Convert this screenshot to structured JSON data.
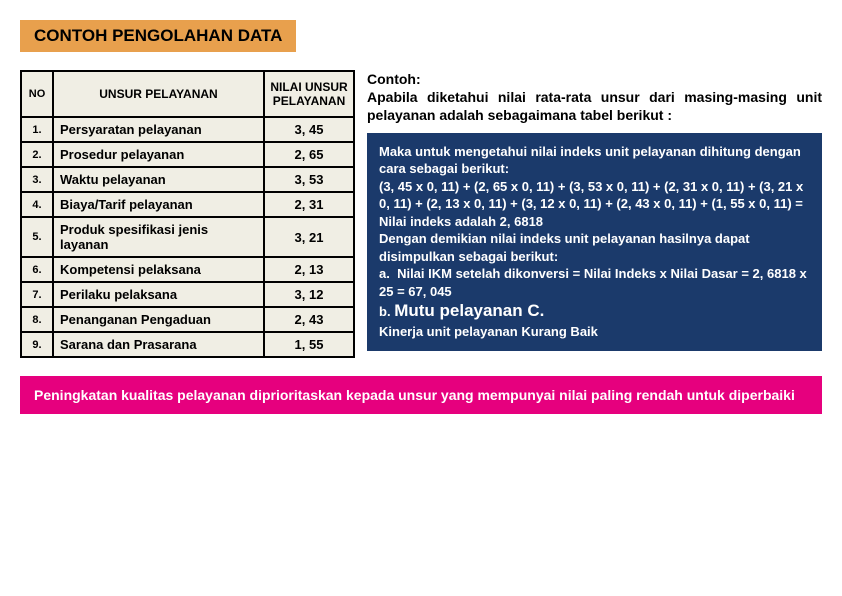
{
  "title": "CONTOH PENGOLAHAN DATA",
  "table": {
    "headers": {
      "no": "NO",
      "name": "UNSUR PELAYANAN",
      "val": "NILAI UNSUR PELAYANAN"
    },
    "rows": [
      {
        "no": "1.",
        "name": "Persyaratan pelayanan",
        "val": "3, 45"
      },
      {
        "no": "2.",
        "name": "Prosedur pelayanan",
        "val": "2, 65"
      },
      {
        "no": "3.",
        "name": "Waktu pelayanan",
        "val": "3, 53"
      },
      {
        "no": "4.",
        "name": "Biaya/Tarif pelayanan",
        "val": "2, 31"
      },
      {
        "no": "5.",
        "name": "Produk spesifikasi jenis layanan",
        "val": "3, 21"
      },
      {
        "no": "6.",
        "name": "Kompetensi pelaksana",
        "val": "2, 13"
      },
      {
        "no": "7.",
        "name": "Perilaku pelaksana",
        "val": "3, 12"
      },
      {
        "no": "8.",
        "name": "Penanganan Pengaduan",
        "val": "2, 43"
      },
      {
        "no": "9.",
        "name": "Sarana dan Prasarana",
        "val": "1, 55"
      }
    ]
  },
  "contoh": {
    "label": "Contoh:",
    "text": "Apabila diketahui nilai rata-rata unsur dari masing-masing unit pelayanan adalah sebagaimana tabel berikut :"
  },
  "calc": {
    "intro": "Maka untuk mengetahui nilai indeks unit pelayanan dihitung dengan cara sebagai berikut:",
    "formula": "(3, 45 x 0, 11) + (2, 65 x 0, 11) + (3, 53 x 0, 11) + (2, 31 x 0, 11) + (3, 21 x 0, 11) + (2, 13 x 0, 11) + (3, 12 x 0, 11) + (2, 43 x 0, 11) + (1, 55 x 0, 11) = Nilai indeks adalah 2, 6818",
    "result1": "Dengan demikian nilai indeks unit pelayanan hasilnya dapat disimpulkan sebagai berikut:",
    "point_a": "a.  Nilai IKM setelah dikonversi = Nilai Indeks x Nilai Dasar = 2, 6818 x 25 = 67, 045",
    "point_b_prefix": "b.",
    "point_b_big": "Mutu pelayanan C.",
    "kinerja": "Kinerja unit pelayanan Kurang Baik"
  },
  "footer": "Peningkatan kualitas pelayanan diprioritaskan kepada unsur yang mempunyai nilai paling rendah untuk diperbaiki",
  "colors": {
    "title_bg": "#e8a04d",
    "table_bg": "#f0eee4",
    "blue_box": "#1b3a6b",
    "pink_box": "#e6007e"
  }
}
